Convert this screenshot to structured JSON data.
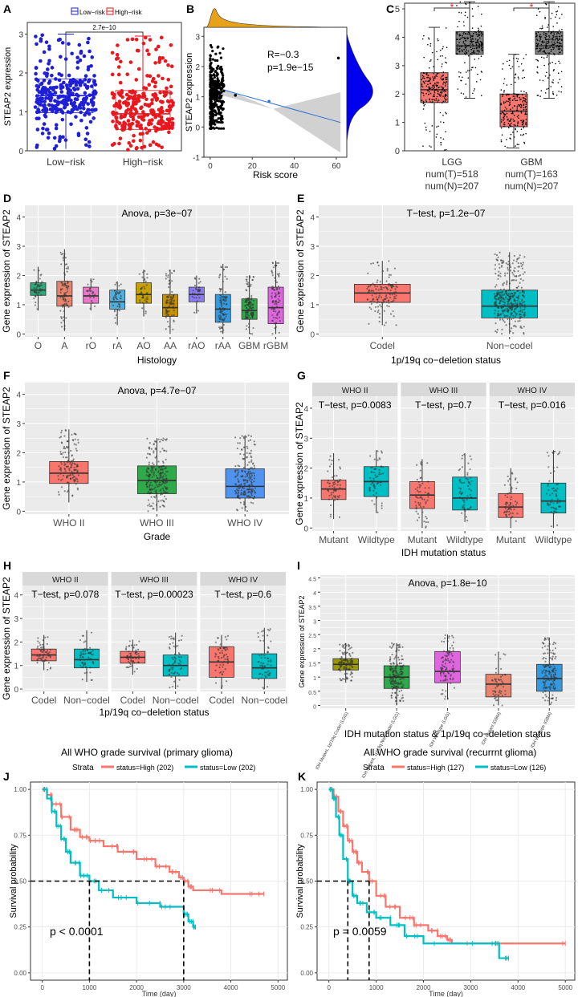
{
  "colors": {
    "blue": "#1f1fd6",
    "red": "#e8181e",
    "salmon": "#f8766d",
    "teal": "#00bfc4",
    "gray": "#5a5a5a",
    "panel": "#ebebeb",
    "grid": "#ffffff",
    "olive": "#9a9a00",
    "green": "#2eaa4a",
    "gold": "#c8a000",
    "purple": "#8a7cf0",
    "pink": "#e066e0",
    "skyblue": "#3399ff",
    "lightgreen": "#2ca02c"
  },
  "chart_data": [
    {
      "id": "A",
      "type": "box",
      "letter": "A",
      "ylabel": "STEAP2 expression",
      "categories": [
        "Low−risk",
        "High−risk"
      ],
      "legend": [
        "Low−risk",
        "High−risk"
      ],
      "pvalue": "2.7e−10",
      "ylim": [
        0,
        3.3
      ],
      "yticks": [
        0,
        1,
        2,
        3
      ],
      "stats": [
        {
          "min": 0.05,
          "q1": 0.98,
          "med": 1.42,
          "q3": 1.85,
          "max": 3.0
        },
        {
          "min": 0.0,
          "q1": 0.55,
          "med": 0.95,
          "q3": 1.55,
          "max": 2.95
        }
      ]
    },
    {
      "id": "B",
      "type": "scatter",
      "letter": "B",
      "ylabel": "STEAP2 expression",
      "xlabel": "Risk score",
      "xlim": [
        -3,
        65
      ],
      "ylim": [
        -1,
        3.3
      ],
      "xticks": [
        0,
        20,
        40,
        60
      ],
      "yticks": [
        -1,
        0,
        1,
        2,
        3
      ],
      "annotation_r": "R=−0.3",
      "annotation_p": "p=1.9e−15",
      "fit": {
        "x0": 0,
        "y0": 1.35,
        "x1": 62,
        "y1": 0.15
      },
      "outliers": [
        {
          "x": 61,
          "y": 2.28
        },
        {
          "x": 28,
          "y": 0.85
        },
        {
          "x": 12,
          "y": 1.05
        }
      ]
    },
    {
      "id": "C",
      "type": "box",
      "letter": "C",
      "categories": [
        "LGG",
        "GBM"
      ],
      "numT": [
        "num(T)=518",
        "num(T)=163"
      ],
      "numN": [
        "num(N)=207",
        "num(N)=207"
      ],
      "ylim": [
        0,
        5.2
      ],
      "yticks": [
        0,
        1,
        2,
        3,
        4,
        5
      ],
      "star": "*",
      "stats": [
        {
          "tumor": {
            "min": 0.0,
            "q1": 1.7,
            "med": 2.15,
            "q3": 2.75,
            "max": 4.35
          },
          "normal": {
            "min": 1.85,
            "q1": 3.4,
            "med": 3.7,
            "q3": 4.2,
            "max": 5.25
          }
        },
        {
          "tumor": {
            "min": 0.1,
            "q1": 0.85,
            "med": 1.4,
            "q3": 2.0,
            "max": 3.4
          },
          "normal": {
            "min": 1.85,
            "q1": 3.4,
            "med": 3.7,
            "q3": 4.2,
            "max": 5.25
          }
        }
      ]
    },
    {
      "id": "D",
      "type": "box",
      "letter": "D",
      "ylabel": "Gene expression of STEAP2",
      "xlabel": "Histology",
      "title": "Anova, p=3e−07",
      "categories": [
        "O",
        "A",
        "rO",
        "rA",
        "AO",
        "AA",
        "rAO",
        "rAA",
        "GBM",
        "rGBM"
      ],
      "ylim": [
        -0.1,
        4.4
      ],
      "yticks": [
        0,
        1,
        2,
        3,
        4
      ],
      "stats": [
        {
          "min": 0.8,
          "q1": 1.32,
          "med": 1.5,
          "q3": 1.75,
          "max": 2.3
        },
        {
          "min": 0.1,
          "q1": 0.95,
          "med": 1.3,
          "q3": 1.8,
          "max": 2.9
        },
        {
          "min": 0.8,
          "q1": 1.05,
          "med": 1.3,
          "q3": 1.6,
          "max": 1.9
        },
        {
          "min": 0.3,
          "q1": 0.85,
          "med": 1.1,
          "q3": 1.5,
          "max": 1.8
        },
        {
          "min": 0.6,
          "q1": 1.05,
          "med": 1.35,
          "q3": 1.75,
          "max": 2.2
        },
        {
          "min": 0.0,
          "q1": 0.6,
          "med": 0.9,
          "q3": 1.35,
          "max": 2.2
        },
        {
          "min": 0.7,
          "q1": 1.1,
          "med": 1.35,
          "q3": 1.6,
          "max": 2.0
        },
        {
          "min": 0.0,
          "q1": 0.4,
          "med": 0.85,
          "q3": 1.35,
          "max": 2.4
        },
        {
          "min": 0.0,
          "q1": 0.5,
          "med": 0.8,
          "q3": 1.2,
          "max": 2.0
        },
        {
          "min": 0.0,
          "q1": 0.35,
          "med": 0.9,
          "q3": 1.6,
          "max": 2.5
        }
      ]
    },
    {
      "id": "E",
      "type": "box",
      "letter": "E",
      "ylabel": "Gene expression of STEAP2",
      "xlabel": "1p/19q co−deletion status",
      "title": "T−test, p=1.2e−07",
      "categories": [
        "Codel",
        "Non−codel"
      ],
      "ylim": [
        -0.1,
        4.4
      ],
      "yticks": [
        0,
        1,
        2,
        3,
        4
      ],
      "stats": [
        {
          "min": 0.3,
          "q1": 1.08,
          "med": 1.4,
          "q3": 1.7,
          "max": 2.5
        },
        {
          "min": 0.0,
          "q1": 0.55,
          "med": 0.95,
          "q3": 1.5,
          "max": 2.8
        }
      ]
    },
    {
      "id": "F",
      "type": "box",
      "letter": "F",
      "ylabel": "Gene expression of STEAP2",
      "xlabel": "Grade",
      "title": "Anova, p=4.7e−07",
      "categories": [
        "WHO II",
        "WHO III",
        "WHO IV"
      ],
      "ylim": [
        -0.1,
        4.4
      ],
      "yticks": [
        0,
        1,
        2,
        3,
        4
      ],
      "stats": [
        {
          "min": 0.3,
          "q1": 0.95,
          "med": 1.3,
          "q3": 1.7,
          "max": 2.8
        },
        {
          "min": 0.0,
          "q1": 0.6,
          "med": 1.05,
          "q3": 1.55,
          "max": 2.5
        },
        {
          "min": 0.0,
          "q1": 0.45,
          "med": 0.85,
          "q3": 1.45,
          "max": 2.6
        }
      ]
    },
    {
      "id": "G",
      "type": "facet_box",
      "letter": "G",
      "ylabel": "Gene expression of STEAP2",
      "xlabel": "IDH mutation status",
      "ylim": [
        -0.1,
        4.4
      ],
      "yticks": [
        0,
        1,
        2,
        3,
        4
      ],
      "categories": [
        "Mutant",
        "Wildtype"
      ],
      "facets": [
        {
          "strip": "WHO II",
          "title": "T−test, p=0.0083",
          "stats": [
            {
              "min": 0.3,
              "q1": 0.95,
              "med": 1.3,
              "q3": 1.6,
              "max": 2.5
            },
            {
              "min": 0.5,
              "q1": 1.05,
              "med": 1.55,
              "q3": 2.05,
              "max": 2.6
            }
          ]
        },
        {
          "strip": "WHO III",
          "title": "T−test, p=0.7",
          "stats": [
            {
              "min": 0.0,
              "q1": 0.65,
              "med": 1.1,
              "q3": 1.55,
              "max": 2.3
            },
            {
              "min": 0.2,
              "q1": 0.6,
              "med": 1.0,
              "q3": 1.7,
              "max": 2.5
            }
          ]
        },
        {
          "strip": "WHO IV",
          "title": "T−test, p=0.016",
          "stats": [
            {
              "min": 0.0,
              "q1": 0.35,
              "med": 0.7,
              "q3": 1.15,
              "max": 2.0
            },
            {
              "min": 0.0,
              "q1": 0.5,
              "med": 0.9,
              "q3": 1.5,
              "max": 2.6
            }
          ]
        }
      ]
    },
    {
      "id": "H",
      "type": "facet_box",
      "letter": "H",
      "ylabel": "Gene expression of STEAP2",
      "xlabel": "1p/19q co−deletion status",
      "ylim": [
        -0.1,
        4.4
      ],
      "yticks": [
        0,
        1,
        2,
        3,
        4
      ],
      "categories": [
        "Codel",
        "Non−codel"
      ],
      "facets": [
        {
          "strip": "WHO II",
          "title": "T−test, p=0.078",
          "stats": [
            {
              "min": 0.8,
              "q1": 1.2,
              "med": 1.45,
              "q3": 1.7,
              "max": 2.3
            },
            {
              "min": 0.3,
              "q1": 0.9,
              "med": 1.25,
              "q3": 1.7,
              "max": 2.5
            }
          ]
        },
        {
          "strip": "WHO III",
          "title": "T−test, p=0.00023",
          "stats": [
            {
              "min": 0.6,
              "q1": 1.1,
              "med": 1.35,
              "q3": 1.6,
              "max": 2.1
            },
            {
              "min": 0.0,
              "q1": 0.55,
              "med": 1.0,
              "q3": 1.45,
              "max": 2.4
            }
          ]
        },
        {
          "strip": "WHO IV",
          "title": "T−test, p=0.6",
          "stats": [
            {
              "min": 0.0,
              "q1": 0.5,
              "med": 1.15,
              "q3": 1.8,
              "max": 2.3
            },
            {
              "min": 0.0,
              "q1": 0.45,
              "med": 0.9,
              "q3": 1.5,
              "max": 2.6
            }
          ]
        }
      ]
    },
    {
      "id": "I",
      "type": "box",
      "letter": "I",
      "ylabel": "Gene expression of STEAP2",
      "xlabel": "IDH mutation status & 1p/19q co−deletion status",
      "title": "Anova, p=1.8e−10",
      "categories": [
        "IDH Mutant, 1p/19q Codel (LGG)",
        "IDH Mutant, 1p/19q Non−codel (LGG)",
        "IDH Wildtype (LGG)",
        "IDH Mutant (GBM)",
        "IDH Wildtype (GBM)"
      ],
      "ylim": [
        -0.1,
        4.6
      ],
      "yticks": [
        0,
        0.5,
        1,
        1.5,
        2,
        2.5,
        3,
        3.5,
        4,
        4.5
      ],
      "stats": [
        {
          "min": 0.8,
          "q1": 1.25,
          "med": 1.45,
          "q3": 1.65,
          "max": 2.2
        },
        {
          "min": 0.0,
          "q1": 0.6,
          "med": 1.0,
          "q3": 1.4,
          "max": 2.2
        },
        {
          "min": 0.2,
          "q1": 0.8,
          "med": 1.2,
          "q3": 1.9,
          "max": 2.5
        },
        {
          "min": 0.0,
          "q1": 0.3,
          "med": 0.75,
          "q3": 1.1,
          "max": 1.9
        },
        {
          "min": 0.0,
          "q1": 0.5,
          "med": 0.95,
          "q3": 1.45,
          "max": 2.4
        }
      ]
    },
    {
      "id": "J",
      "type": "survival",
      "letter": "J",
      "title": "All WHO grade survival (primary glioma)",
      "legend_title": "Strata",
      "legend": [
        "status=High (202)",
        "status=Low (202)"
      ],
      "ylabel": "Survival probability",
      "xlabel": "Time (day)",
      "pvalue": "p < 0.0001",
      "xlim": [
        -250,
        5200
      ],
      "ylim": [
        -0.04,
        1.04
      ],
      "xticks": [
        0,
        1000,
        2000,
        3000,
        4000,
        5000
      ],
      "yticks": [
        "0.00",
        "0.25",
        "0.50",
        "0.75",
        "1.00"
      ],
      "median": [
        3000,
        1000
      ],
      "high": [
        [
          0,
          1
        ],
        [
          100,
          0.97
        ],
        [
          200,
          0.92
        ],
        [
          400,
          0.85
        ],
        [
          600,
          0.78
        ],
        [
          800,
          0.74
        ],
        [
          1000,
          0.72
        ],
        [
          1300,
          0.69
        ],
        [
          1600,
          0.66
        ],
        [
          2000,
          0.62
        ],
        [
          2400,
          0.58
        ],
        [
          2700,
          0.55
        ],
        [
          2900,
          0.52
        ],
        [
          3000,
          0.5
        ],
        [
          3100,
          0.47
        ],
        [
          3200,
          0.45
        ],
        [
          3800,
          0.43
        ],
        [
          4700,
          0.43
        ]
      ],
      "low": [
        [
          0,
          1
        ],
        [
          100,
          0.95
        ],
        [
          200,
          0.88
        ],
        [
          300,
          0.8
        ],
        [
          400,
          0.73
        ],
        [
          500,
          0.66
        ],
        [
          600,
          0.6
        ],
        [
          800,
          0.53
        ],
        [
          1000,
          0.5
        ],
        [
          1200,
          0.45
        ],
        [
          1500,
          0.41
        ],
        [
          2000,
          0.38
        ],
        [
          2500,
          0.36
        ],
        [
          3000,
          0.32
        ],
        [
          3100,
          0.28
        ],
        [
          3200,
          0.25
        ],
        [
          3250,
          0.25
        ]
      ]
    },
    {
      "id": "K",
      "type": "survival",
      "letter": "K",
      "title": "All WHO grade survival (recurrnt glioma)",
      "legend_title": "Strata",
      "legend": [
        "status=High (127)",
        "status=Low (126)"
      ],
      "ylabel": "Survival probability",
      "xlabel": "Time (day)",
      "pvalue": "p = 0.0059",
      "xlim": [
        -250,
        5200
      ],
      "ylim": [
        -0.04,
        1.04
      ],
      "xticks": [
        0,
        1000,
        2000,
        3000,
        4000,
        5000
      ],
      "yticks": [
        "0.00",
        "0.25",
        "0.50",
        "0.75",
        "1.00"
      ],
      "median": [
        850,
        400
      ],
      "high": [
        [
          0,
          1
        ],
        [
          100,
          0.96
        ],
        [
          200,
          0.88
        ],
        [
          300,
          0.8
        ],
        [
          400,
          0.72
        ],
        [
          500,
          0.66
        ],
        [
          600,
          0.6
        ],
        [
          700,
          0.55
        ],
        [
          850,
          0.5
        ],
        [
          1000,
          0.42
        ],
        [
          1200,
          0.36
        ],
        [
          1500,
          0.3
        ],
        [
          1800,
          0.26
        ],
        [
          2100,
          0.23
        ],
        [
          2300,
          0.2
        ],
        [
          2500,
          0.18
        ],
        [
          2600,
          0.16
        ],
        [
          5000,
          0.16
        ]
      ],
      "low": [
        [
          0,
          1
        ],
        [
          80,
          0.95
        ],
        [
          150,
          0.85
        ],
        [
          220,
          0.75
        ],
        [
          300,
          0.62
        ],
        [
          400,
          0.5
        ],
        [
          500,
          0.42
        ],
        [
          600,
          0.38
        ],
        [
          800,
          0.33
        ],
        [
          1000,
          0.3
        ],
        [
          1300,
          0.26
        ],
        [
          1600,
          0.2
        ],
        [
          2000,
          0.16
        ],
        [
          3500,
          0.16
        ],
        [
          3600,
          0.08
        ],
        [
          3800,
          0.08
        ]
      ]
    }
  ]
}
